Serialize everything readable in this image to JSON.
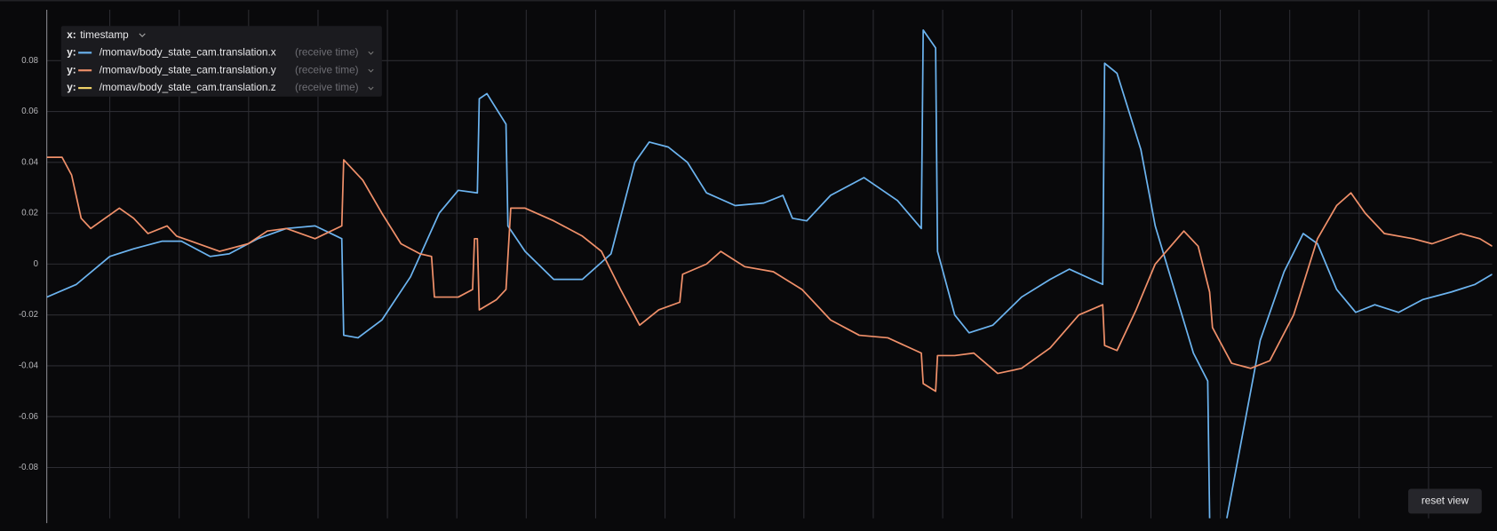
{
  "chart_data": {
    "type": "line",
    "ylim": [
      -0.1,
      0.1
    ],
    "yticks": [
      -0.08,
      -0.06,
      -0.04,
      -0.02,
      0,
      0.02,
      0.04,
      0.06,
      0.08
    ],
    "xlim": [
      49,
      1563
    ],
    "grid": true,
    "legend": {
      "x_prefix": "x:",
      "x_field": "timestamp",
      "y_prefix": "y:"
    },
    "button": "reset view",
    "series": [
      {
        "name": "/momav/body_state_cam.translation.x",
        "source": "(receive time)",
        "color": "#6cb4f0",
        "x": [
          49,
          80,
          115,
          140,
          170,
          190,
          220,
          240,
          270,
          300,
          330,
          358,
          360,
          375,
          400,
          430,
          460,
          480,
          500,
          502,
          510,
          530,
          532,
          550,
          580,
          610,
          640,
          665,
          680,
          700,
          720,
          740,
          770,
          800,
          820,
          830,
          845,
          870,
          905,
          940,
          965,
          967,
          980,
          982,
          1000,
          1015,
          1040,
          1070,
          1100,
          1120,
          1155,
          1157,
          1170,
          1195,
          1210,
          1230,
          1250,
          1265,
          1267,
          1276,
          1285,
          1300,
          1320,
          1345,
          1365,
          1380,
          1400,
          1420,
          1440,
          1465,
          1490,
          1520,
          1545,
          1563
        ],
        "values": [
          -0.013,
          -0.008,
          0.003,
          0.006,
          0.009,
          0.009,
          0.003,
          0.004,
          0.01,
          0.014,
          0.015,
          0.01,
          -0.028,
          -0.029,
          -0.022,
          -0.005,
          0.02,
          0.029,
          0.028,
          0.065,
          0.067,
          0.055,
          0.015,
          0.005,
          -0.006,
          -0.006,
          0.004,
          0.04,
          0.048,
          0.046,
          0.04,
          0.028,
          0.023,
          0.024,
          0.027,
          0.018,
          0.017,
          0.027,
          0.034,
          0.025,
          0.014,
          0.092,
          0.085,
          0.005,
          -0.02,
          -0.027,
          -0.024,
          -0.013,
          -0.006,
          -0.002,
          -0.008,
          0.079,
          0.075,
          0.045,
          0.015,
          -0.01,
          -0.035,
          -0.046,
          -0.1,
          null,
          -0.1,
          -0.07,
          -0.03,
          -0.003,
          0.012,
          0.008,
          -0.01,
          -0.019,
          -0.016,
          -0.019,
          -0.014,
          -0.011,
          -0.008,
          -0.004
        ]
      },
      {
        "name": "/momav/body_state_cam.translation.y",
        "source": "(receive time)",
        "color": "#f0906a",
        "x": [
          49,
          65,
          75,
          85,
          95,
          110,
          125,
          140,
          155,
          175,
          185,
          200,
          230,
          260,
          280,
          300,
          330,
          358,
          360,
          380,
          400,
          420,
          440,
          452,
          455,
          480,
          495,
          497,
          500,
          502,
          520,
          530,
          535,
          550,
          580,
          610,
          630,
          650,
          670,
          690,
          712,
          715,
          740,
          755,
          780,
          810,
          840,
          870,
          900,
          930,
          965,
          967,
          980,
          982,
          1000,
          1020,
          1045,
          1070,
          1100,
          1130,
          1155,
          1157,
          1170,
          1190,
          1210,
          1240,
          1255,
          1267,
          1270,
          1290,
          1310,
          1330,
          1355,
          1380,
          1400,
          1415,
          1430,
          1450,
          1480,
          1500,
          1530,
          1550,
          1563
        ],
        "values": [
          0.042,
          0.042,
          0.035,
          0.018,
          0.014,
          0.018,
          0.022,
          0.018,
          0.012,
          0.015,
          0.011,
          0.009,
          0.005,
          0.008,
          0.013,
          0.014,
          0.01,
          0.015,
          0.041,
          0.033,
          0.02,
          0.008,
          0.004,
          0.003,
          -0.013,
          -0.013,
          -0.01,
          0.01,
          0.01,
          -0.018,
          -0.014,
          -0.01,
          0.022,
          0.022,
          0.017,
          0.011,
          0.005,
          -0.01,
          -0.024,
          -0.018,
          -0.015,
          -0.004,
          0.0,
          0.005,
          -0.001,
          -0.003,
          -0.01,
          -0.022,
          -0.028,
          -0.029,
          -0.035,
          -0.047,
          -0.05,
          -0.036,
          -0.036,
          -0.035,
          -0.043,
          -0.041,
          -0.033,
          -0.02,
          -0.016,
          -0.032,
          -0.034,
          -0.018,
          0.0,
          0.013,
          0.007,
          -0.011,
          -0.025,
          -0.039,
          -0.041,
          -0.038,
          -0.02,
          0.01,
          0.023,
          0.028,
          0.02,
          0.012,
          0.01,
          0.008,
          0.012,
          0.01,
          0.007
        ]
      },
      {
        "name": "/momav/body_state_cam.translation.z",
        "source": "(receive time)",
        "color": "#f5d66a",
        "x": [],
        "values": []
      }
    ]
  }
}
